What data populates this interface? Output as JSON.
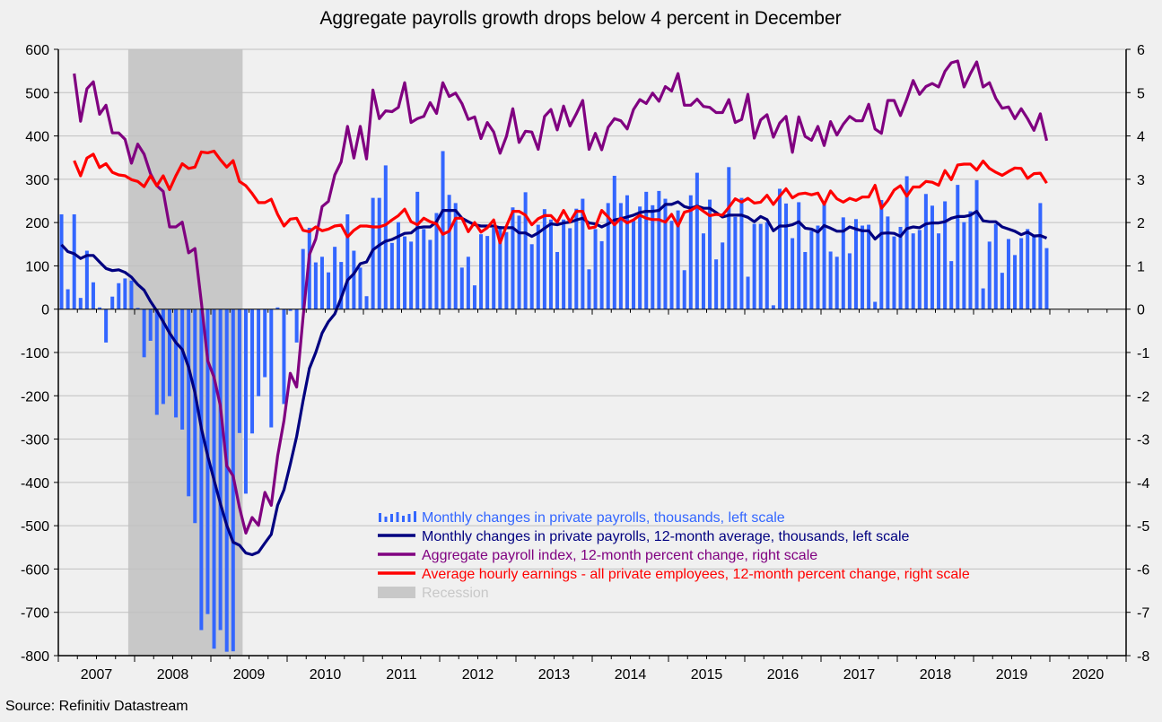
{
  "chart_data": {
    "type": "bar+line",
    "title": "Aggregate payrolls growth drops below 4 percent in December",
    "source": "Source: Refinitiv Datastream",
    "x_start": "2007-01",
    "x_end": "2019-12",
    "x_tick_labels": [
      "2007",
      "2008",
      "2009",
      "2010",
      "2011",
      "2012",
      "2013",
      "2014",
      "2015",
      "2016",
      "2017",
      "2018",
      "2019",
      "2020"
    ],
    "left_axis": {
      "ylim": [
        -800,
        600
      ],
      "ticks": [
        "600",
        "500",
        "400",
        "300",
        "200",
        "100",
        "0",
        "-100",
        "-200",
        "-300",
        "-400",
        "-500",
        "-600",
        "-700",
        "-800"
      ]
    },
    "right_axis": {
      "ylim": [
        -8,
        6
      ],
      "ticks": [
        "6",
        "5",
        "4",
        "3",
        "2",
        "1",
        "0",
        "-1",
        "-2",
        "-3",
        "-4",
        "-5",
        "-6",
        "-7",
        "-8"
      ]
    },
    "grid": true,
    "recession": {
      "start": "2007-12",
      "end": "2009-06",
      "color": "#c8c8c8"
    },
    "series": [
      {
        "name": "Monthly changes in private payrolls, thousands, left scale",
        "type": "bar",
        "axis": "left",
        "color": "#3366ff",
        "values": [
          219,
          46,
          219,
          26,
          135,
          62,
          4,
          -77,
          29,
          60,
          71,
          66,
          3,
          -111,
          -73,
          -244,
          -219,
          -201,
          -250,
          -278,
          -432,
          -494,
          -741,
          -704,
          -784,
          -741,
          -791,
          -790,
          -286,
          -426,
          -287,
          -201,
          -157,
          -273,
          4,
          -219,
          -4,
          -77,
          139,
          188,
          108,
          121,
          85,
          144,
          109,
          219,
          135,
          96,
          30,
          257,
          257,
          332,
          153,
          201,
          168,
          156,
          271,
          185,
          160,
          222,
          365,
          264,
          245,
          96,
          121,
          55,
          173,
          169,
          188,
          192,
          178,
          235,
          216,
          270,
          150,
          195,
          231,
          207,
          132,
          207,
          187,
          232,
          255,
          92,
          185,
          157,
          245,
          308,
          245,
          263,
          204,
          237,
          271,
          240,
          273,
          255,
          204,
          228,
          90,
          263,
          315,
          175,
          253,
          115,
          154,
          328,
          213,
          257,
          75,
          197,
          197,
          201,
          9,
          278,
          244,
          164,
          247,
          132,
          181,
          193,
          244,
          133,
          121,
          212,
          129,
          208,
          193,
          195,
          17,
          252,
          214,
          168,
          190,
          307,
          175,
          183,
          266,
          239,
          175,
          249,
          111,
          287,
          201,
          226,
          298,
          48,
          156,
          197,
          84,
          162,
          125,
          164,
          185,
          168,
          245,
          141
        ]
      },
      {
        "name": "Monthly changes in private payrolls, 12-month average, thousands, left scale",
        "type": "line",
        "axis": "left",
        "color": "#000080",
        "values": [
          149,
          133,
          128,
          117,
          124,
          124,
          109,
          94,
          89,
          91,
          85,
          74,
          57,
          44,
          18,
          -4,
          -29,
          -55,
          -77,
          -93,
          -134,
          -193,
          -275,
          -339,
          -394,
          -449,
          -499,
          -538,
          -545,
          -563,
          -567,
          -561,
          -540,
          -520,
          -453,
          -417,
          -358,
          -294,
          -212,
          -137,
          -100,
          -55,
          -29,
          -11,
          26,
          67,
          82,
          105,
          109,
          137,
          148,
          157,
          161,
          168,
          175,
          176,
          188,
          190,
          190,
          202,
          228,
          228,
          228,
          210,
          202,
          195,
          192,
          192,
          192,
          188,
          188,
          188,
          176,
          176,
          168,
          176,
          187,
          197,
          195,
          199,
          201,
          206,
          210,
          199,
          197,
          190,
          197,
          206,
          209,
          213,
          217,
          223,
          226,
          226,
          228,
          242,
          242,
          248,
          237,
          233,
          238,
          233,
          233,
          223,
          213,
          217,
          217,
          217,
          212,
          202,
          214,
          207,
          181,
          192,
          192,
          195,
          202,
          187,
          185,
          178,
          193,
          187,
          180,
          180,
          190,
          185,
          181,
          181,
          162,
          175,
          176,
          175,
          168,
          186,
          190,
          188,
          197,
          199,
          199,
          202,
          210,
          214,
          214,
          217,
          226,
          204,
          202,
          202,
          190,
          185,
          180,
          172,
          178,
          169,
          170,
          164
        ]
      },
      {
        "name": "Aggregate payroll index, 12-month percent change, right scale",
        "type": "line",
        "axis": "right",
        "color": "#800080",
        "values": [
          null,
          null,
          5.44,
          4.34,
          5.09,
          5.25,
          4.5,
          4.71,
          4.07,
          4.07,
          3.92,
          3.37,
          3.81,
          3.58,
          3.13,
          2.85,
          2.72,
          1.9,
          1.9,
          2.01,
          1.3,
          1.4,
          0.16,
          -1.19,
          -1.57,
          -2.23,
          -3.62,
          -3.85,
          -4.58,
          -5.17,
          -4.81,
          -4.99,
          -4.23,
          -4.53,
          -3.39,
          -2.57,
          -1.48,
          -1.8,
          -0.2,
          1.26,
          1.62,
          2.37,
          2.49,
          3.1,
          3.4,
          4.22,
          3.49,
          4.22,
          3.47,
          5.06,
          4.4,
          4.58,
          4.56,
          4.66,
          5.23,
          4.31,
          4.4,
          4.45,
          4.77,
          4.52,
          5.23,
          4.91,
          4.99,
          4.75,
          4.38,
          4.44,
          3.94,
          4.31,
          4.09,
          3.6,
          3.99,
          4.63,
          3.85,
          4.11,
          4.09,
          3.69,
          4.45,
          4.61,
          4.14,
          4.69,
          4.23,
          4.51,
          4.82,
          3.69,
          4.06,
          3.68,
          4.2,
          4.4,
          4.35,
          4.16,
          4.61,
          4.84,
          4.75,
          4.99,
          4.8,
          5.14,
          5.04,
          5.44,
          4.71,
          4.71,
          4.85,
          4.68,
          4.66,
          4.54,
          4.54,
          4.84,
          4.31,
          4.38,
          4.96,
          3.95,
          4.37,
          4.49,
          3.97,
          4.3,
          4.45,
          3.62,
          4.44,
          3.99,
          3.9,
          4.22,
          3.78,
          4.33,
          4.02,
          4.27,
          4.45,
          4.35,
          4.35,
          4.73,
          4.16,
          4.06,
          4.82,
          4.82,
          4.47,
          4.85,
          5.28,
          4.96,
          5.14,
          5.21,
          5.13,
          5.49,
          5.69,
          5.73,
          5.13,
          5.44,
          5.71,
          5.13,
          5.23,
          4.87,
          4.64,
          4.67,
          4.4,
          4.63,
          4.4,
          4.13,
          4.51,
          3.89
        ]
      },
      {
        "name": "Average hourly earnings - all private employees, 12-month percent change, right scale",
        "type": "line",
        "axis": "right",
        "color": "#ff0000",
        "values": [
          null,
          null,
          3.43,
          3.08,
          3.49,
          3.58,
          3.27,
          3.36,
          3.16,
          3.1,
          3.08,
          2.99,
          2.95,
          2.83,
          3.08,
          2.85,
          3.08,
          2.76,
          3.08,
          3.36,
          3.25,
          3.28,
          3.63,
          3.61,
          3.65,
          3.45,
          3.28,
          3.43,
          2.95,
          2.85,
          2.67,
          2.46,
          2.46,
          2.54,
          2.19,
          1.92,
          2.08,
          2.1,
          1.82,
          1.79,
          1.9,
          1.81,
          1.85,
          1.92,
          1.94,
          1.67,
          1.82,
          1.92,
          1.92,
          1.9,
          1.9,
          1.95,
          2.06,
          2.16,
          2.31,
          2.02,
          1.95,
          2.1,
          2.02,
          1.97,
          1.73,
          1.8,
          2.1,
          2.1,
          1.79,
          2.0,
          1.78,
          1.88,
          2.06,
          1.53,
          1.92,
          2.26,
          2.26,
          2.17,
          1.95,
          2.09,
          2.16,
          2.16,
          2.01,
          2.28,
          2.02,
          2.26,
          2.26,
          1.87,
          1.9,
          2.28,
          2.13,
          1.95,
          2.1,
          1.99,
          2.06,
          2.17,
          2.1,
          2.07,
          2.07,
          2.01,
          2.19,
          1.92,
          2.24,
          2.28,
          2.37,
          2.26,
          2.16,
          2.19,
          2.17,
          2.35,
          2.55,
          2.47,
          2.56,
          2.45,
          2.47,
          2.63,
          2.42,
          2.61,
          2.78,
          2.57,
          2.66,
          2.68,
          2.64,
          2.68,
          2.42,
          2.73,
          2.55,
          2.47,
          2.56,
          2.51,
          2.59,
          2.59,
          2.86,
          2.33,
          2.51,
          2.75,
          2.85,
          2.61,
          2.82,
          2.82,
          2.95,
          2.93,
          2.86,
          3.2,
          2.99,
          3.33,
          3.35,
          3.35,
          3.21,
          3.42,
          3.25,
          3.16,
          3.09,
          3.18,
          3.26,
          3.25,
          3.02,
          3.13,
          3.14,
          2.91
        ]
      }
    ],
    "legend": {
      "placement": "bottom-center",
      "items": [
        "Monthly changes in private payrolls, thousands, left scale",
        "Monthly changes in private payrolls, 12-month average, thousands, left scale",
        "Aggregate payroll index, 12-month percent change, right scale",
        "Average hourly earnings - all private employees, 12-month percent change, right scale",
        "Recession"
      ]
    }
  }
}
